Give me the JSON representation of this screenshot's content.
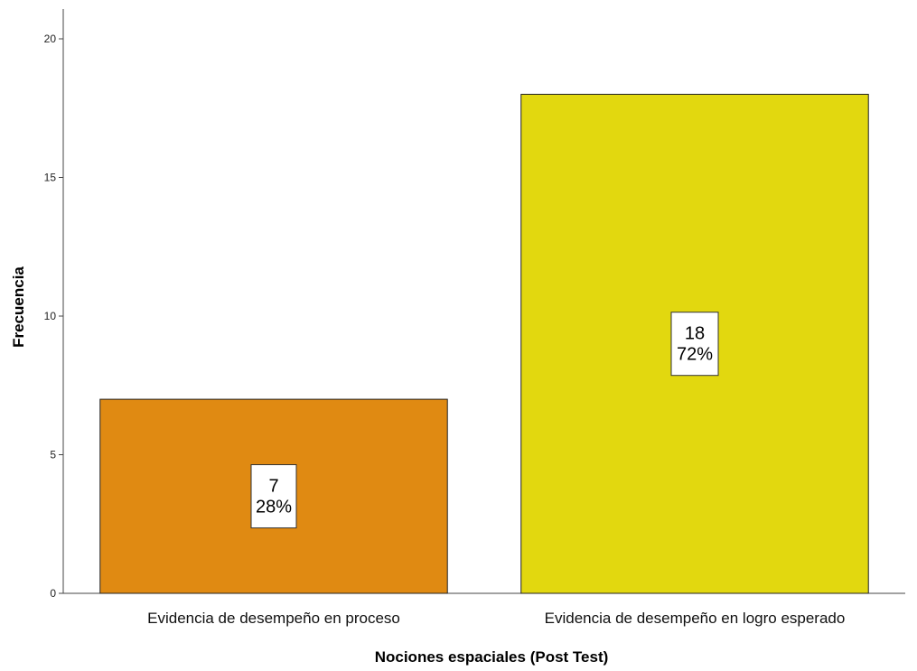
{
  "chart_data": {
    "type": "bar",
    "title": "",
    "xlabel": "Nociones espaciales (Post Test)",
    "ylabel": "Frecuencia",
    "ylim": [
      0,
      21
    ],
    "yticks": [
      0,
      5,
      10,
      15,
      20
    ],
    "grid": false,
    "categories": [
      "Evidencia de desempeño en proceso",
      "Evidencia de desempeño en logro esperado"
    ],
    "values": [
      7,
      18
    ],
    "data_labels": [
      {
        "count": "7",
        "percent": "28%"
      },
      {
        "count": "18",
        "percent": "72%"
      }
    ],
    "colors": [
      "#E08A12",
      "#E2D80F"
    ]
  }
}
